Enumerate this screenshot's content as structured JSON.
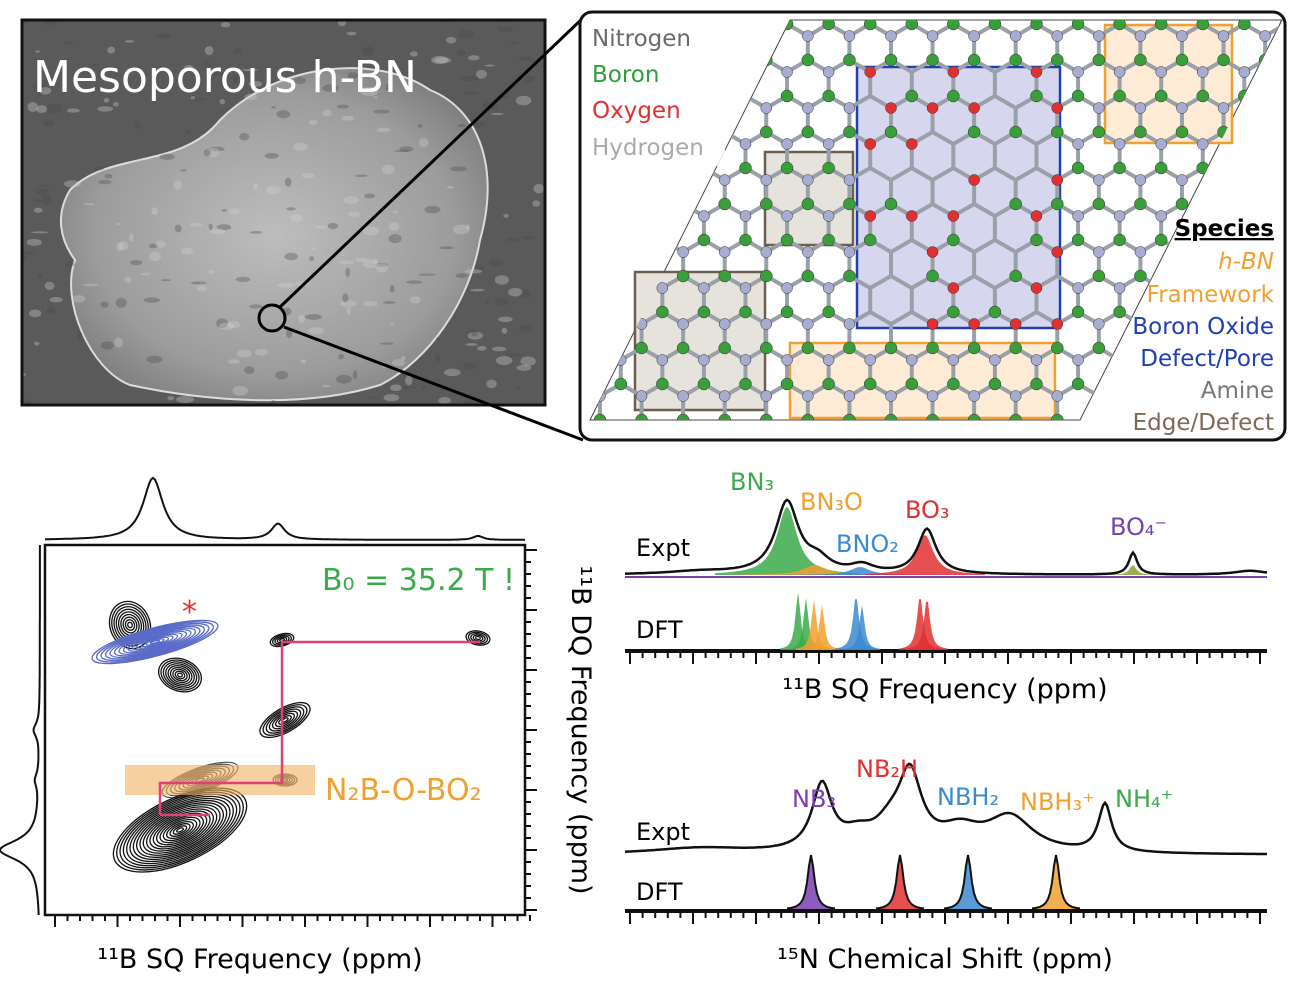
{
  "sem_panel": {
    "title": "Mesoporous h-BN"
  },
  "structure_panel": {
    "legend": [
      "Nitrogen",
      "Boron",
      "Oxygen",
      "Hydrogen"
    ],
    "species_heading": "Species",
    "species": [
      "h-BN",
      "Framework",
      "Boron Oxide",
      "Defect/Pore",
      "Amine",
      "Edge/Defect"
    ]
  },
  "correlation_panel": {
    "field": "B₀ = 35.2 T !",
    "asterisk": "*",
    "assignment": "N₂B-O-BO₂",
    "x_label": "¹¹B SQ Frequency (ppm)",
    "y_label": "¹¹B DQ Frequency (ppm)"
  },
  "boron_spectrum": {
    "rows": [
      "Expt",
      "DFT"
    ],
    "peaks": [
      "BN₃",
      "BN₃O",
      "BNO₂",
      "BO₃",
      "BO₄⁻"
    ],
    "x_label": "¹¹B SQ Frequency (ppm)"
  },
  "nitrogen_spectrum": {
    "rows": [
      "Expt",
      "DFT"
    ],
    "peaks": [
      "NB₃",
      "NB₂H",
      "NBH₂",
      "NBH₃⁺",
      "NH₄⁺"
    ],
    "x_label": "¹⁵N Chemical Shift (ppm)"
  }
}
